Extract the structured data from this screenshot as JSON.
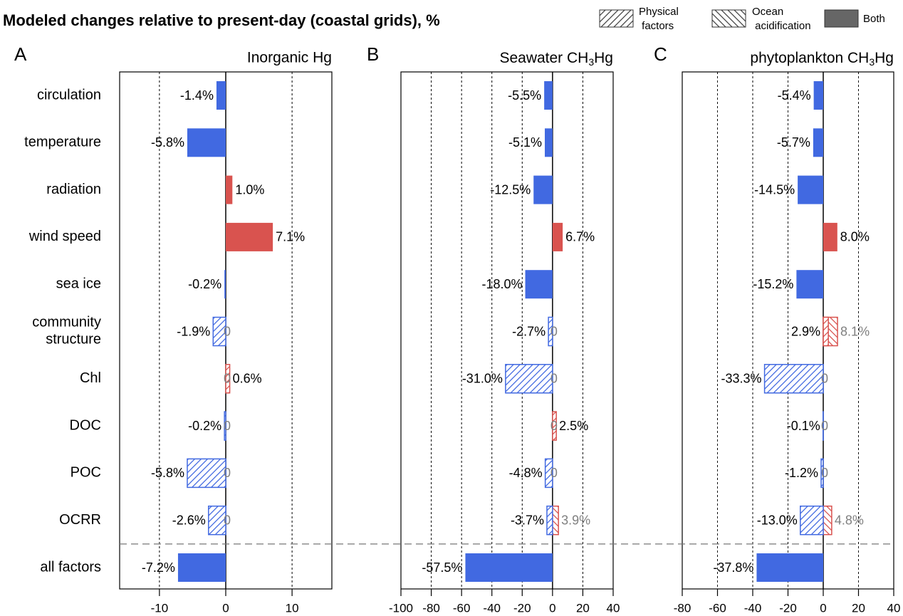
{
  "title": "Modeled changes relative to present-day (coastal grids), %",
  "legend": [
    {
      "name": "Physical factors",
      "pattern": "/"
    },
    {
      "name": "Ocean acidification",
      "pattern": "\\"
    },
    {
      "name": "Both",
      "pattern": "solid"
    }
  ],
  "categories": [
    "circulation",
    "temperature",
    "radiation",
    "wind speed",
    "sea ice",
    "community structure",
    "Chl",
    "DOC",
    "POC",
    "OCRR",
    "all factors"
  ],
  "positive_color": "#d9534f",
  "negative_color": "#4169e1",
  "both_legend_color": "#666666",
  "grid": true,
  "chart_data": [
    {
      "type": "bar",
      "letter": "A",
      "title": "Inorganic Hg",
      "xlim": [
        -16,
        16
      ],
      "xticks": [
        -10,
        0,
        10
      ],
      "series": [
        {
          "pattern": "solid",
          "label_color": "#000000",
          "values": [
            -1.4,
            -5.8,
            1.0,
            7.1,
            -0.2,
            null,
            null,
            null,
            null,
            null,
            -7.2
          ],
          "value_labels": [
            "-1.4%",
            "-5.8%",
            "1.0%",
            "7.1%",
            "-0.2%",
            null,
            null,
            null,
            null,
            null,
            "-7.2%"
          ]
        },
        {
          "pattern": "/",
          "label_color": "#000000",
          "values": [
            null,
            null,
            null,
            null,
            null,
            -1.9,
            0.6,
            -0.2,
            -5.8,
            -2.6,
            null
          ],
          "value_labels": [
            null,
            null,
            null,
            null,
            null,
            "-1.9%",
            "0.6%",
            "-0.2%",
            "-5.8%",
            "-2.6%",
            null
          ]
        },
        {
          "pattern": "\\",
          "label_color": "#808080",
          "values": [
            null,
            null,
            null,
            null,
            null,
            0,
            0,
            0,
            0,
            0,
            null
          ],
          "value_labels": [
            null,
            null,
            null,
            null,
            null,
            "0",
            "0",
            "0",
            "0",
            "0",
            null
          ]
        }
      ]
    },
    {
      "type": "bar",
      "letter": "B",
      "title": "Seawater CH3Hg",
      "xlim": [
        -100,
        40
      ],
      "xticks": [
        -100,
        -80,
        -60,
        -40,
        -20,
        0,
        20,
        40
      ],
      "series": [
        {
          "pattern": "solid",
          "label_color": "#000000",
          "values": [
            -5.5,
            -5.1,
            -12.5,
            6.7,
            -18.0,
            null,
            null,
            null,
            null,
            null,
            -57.5
          ],
          "value_labels": [
            "-5.5%",
            "-5.1%",
            "-12.5%",
            "6.7%",
            "-18.0%",
            null,
            null,
            null,
            null,
            null,
            "-57.5%"
          ]
        },
        {
          "pattern": "/",
          "label_color": "#000000",
          "values": [
            null,
            null,
            null,
            null,
            null,
            -2.7,
            -31.0,
            2.5,
            -4.8,
            -3.7,
            null
          ],
          "value_labels": [
            null,
            null,
            null,
            null,
            null,
            "-2.7%",
            "-31.0%",
            "2.5%",
            "-4.8%",
            "-3.7%",
            null
          ]
        },
        {
          "pattern": "\\",
          "label_color": "#808080",
          "values": [
            null,
            null,
            null,
            null,
            null,
            0,
            0,
            0,
            0,
            3.9,
            null
          ],
          "value_labels": [
            null,
            null,
            null,
            null,
            null,
            "0",
            "0",
            "0",
            "0",
            "3.9%",
            null
          ]
        }
      ]
    },
    {
      "type": "bar",
      "letter": "C",
      "title": "phytoplankton CH3Hg",
      "xlim": [
        -80,
        40
      ],
      "xticks": [
        -80,
        -60,
        -40,
        -20,
        0,
        20,
        40
      ],
      "series": [
        {
          "pattern": "solid",
          "label_color": "#000000",
          "values": [
            -5.4,
            -5.7,
            -14.5,
            8.0,
            -15.2,
            null,
            null,
            null,
            null,
            null,
            -37.8
          ],
          "value_labels": [
            "-5.4%",
            "-5.7%",
            "-14.5%",
            "8.0%",
            "-15.2%",
            null,
            null,
            null,
            null,
            null,
            "-37.8%"
          ]
        },
        {
          "pattern": "/",
          "label_color": "#000000",
          "values": [
            null,
            null,
            null,
            null,
            null,
            2.9,
            -33.3,
            -0.1,
            -1.2,
            -13.0,
            null
          ],
          "value_labels": [
            null,
            null,
            null,
            null,
            null,
            "2.9%",
            "-33.3%",
            "-0.1%",
            "-1.2%",
            "-13.0%",
            null
          ]
        },
        {
          "pattern": "\\",
          "label_color": "#808080",
          "values": [
            null,
            null,
            null,
            null,
            null,
            8.1,
            0,
            0,
            0,
            4.8,
            null
          ],
          "value_labels": [
            null,
            null,
            null,
            null,
            null,
            "8.1%",
            "0",
            "0",
            "0",
            "4.8%",
            null
          ]
        }
      ]
    }
  ]
}
